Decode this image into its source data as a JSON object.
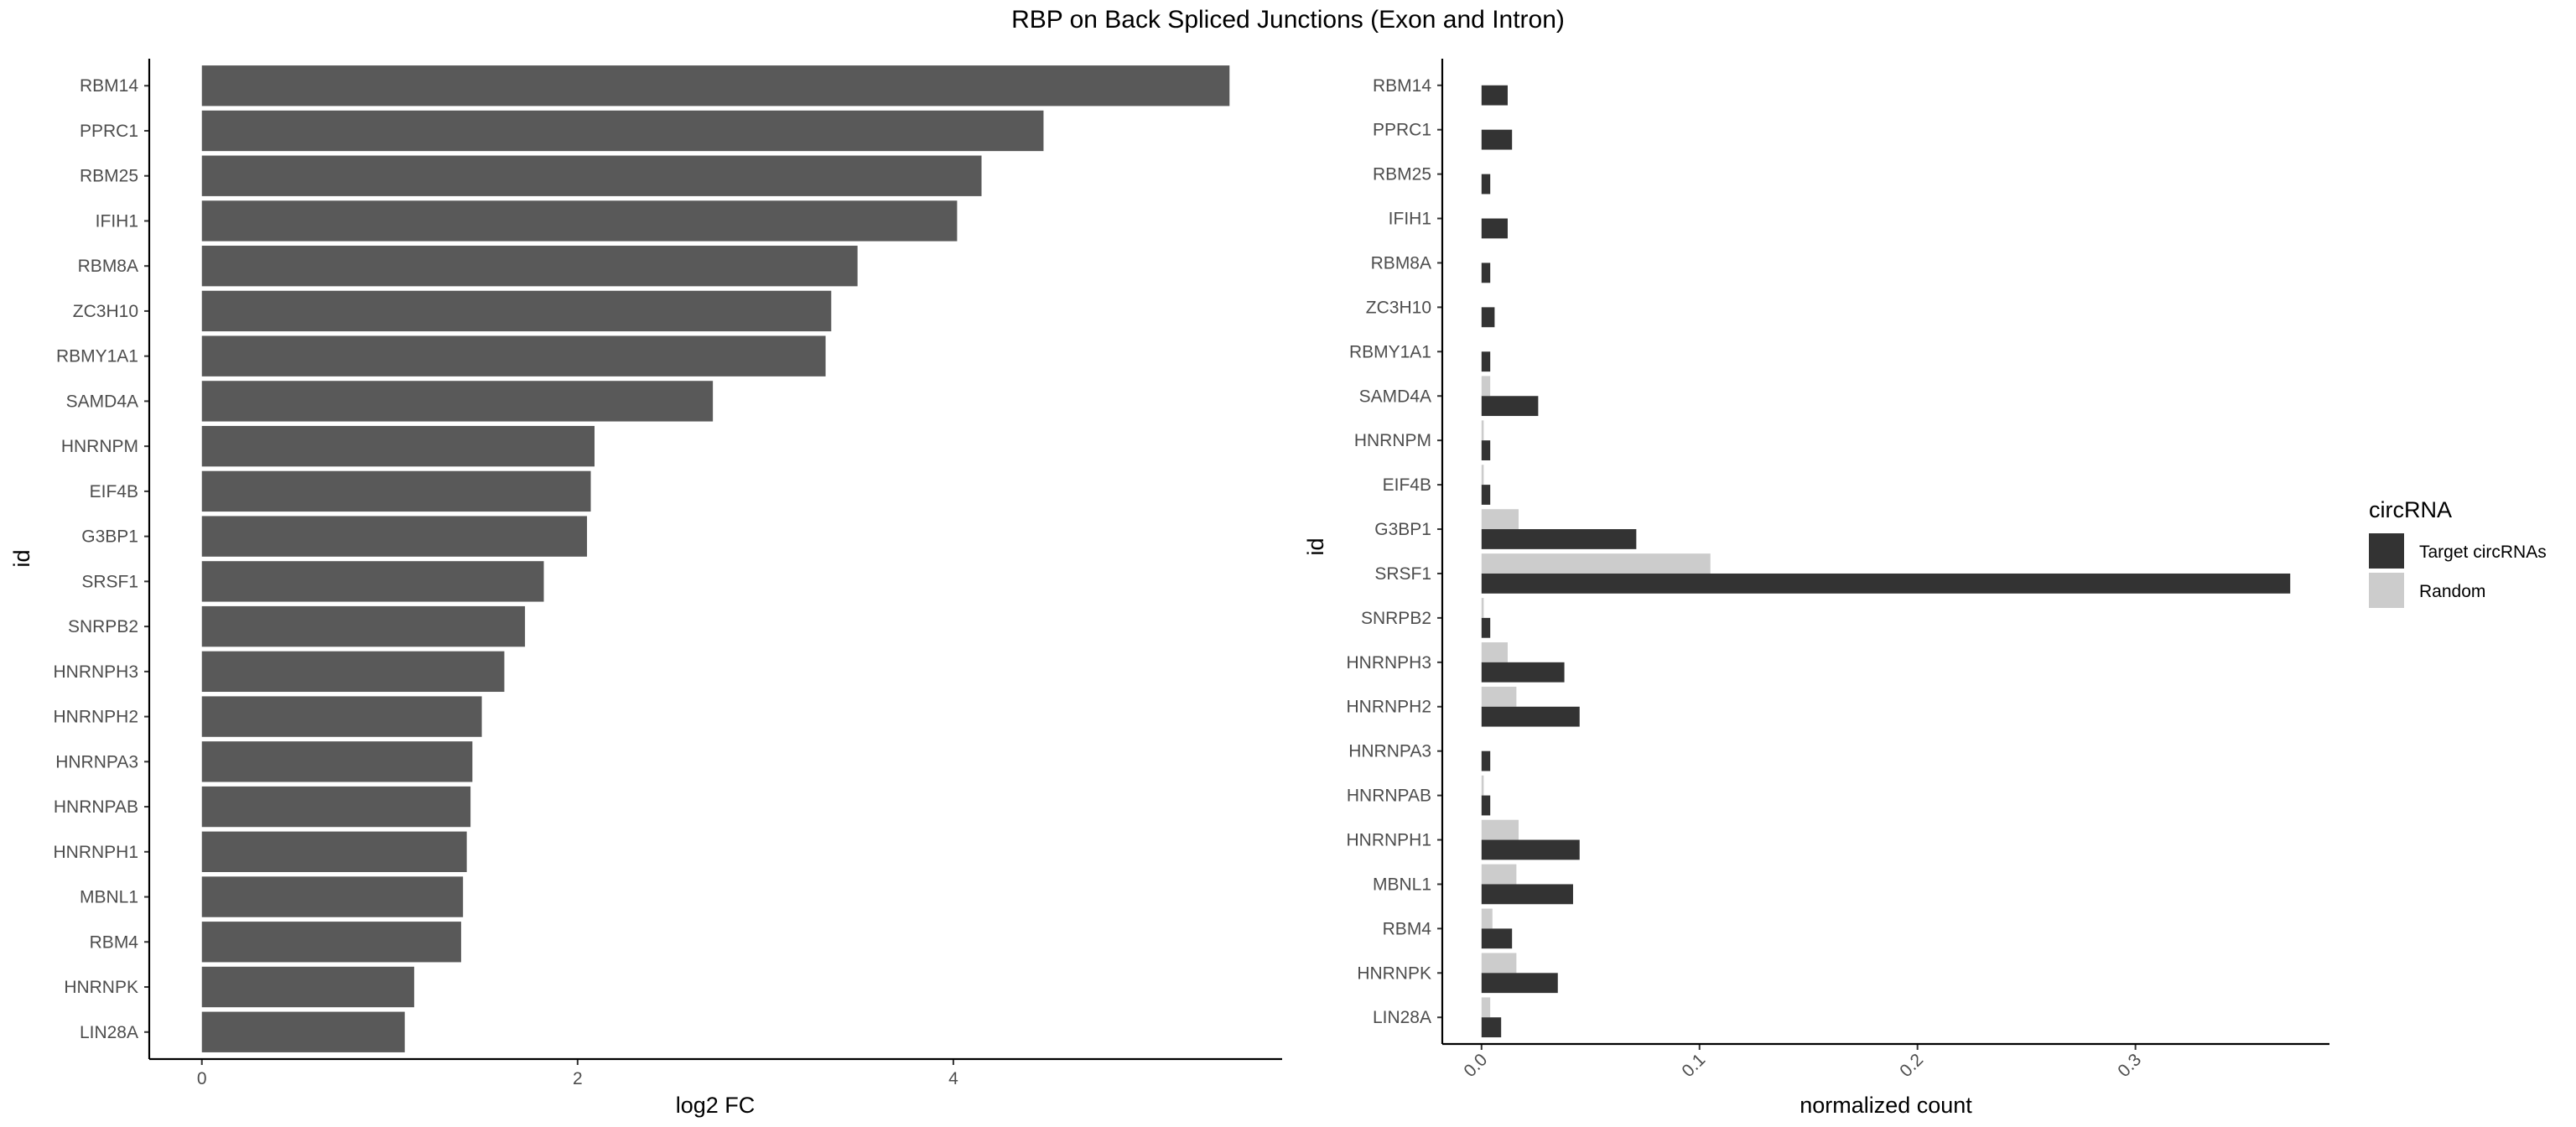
{
  "title": "RBP on Back Spliced Junctions (Exon and Intron)",
  "chart_data": [
    {
      "type": "bar",
      "orientation": "horizontal",
      "ylabel": "id",
      "xlabel": "log2 FC",
      "categories": [
        "RBM14",
        "PPRC1",
        "RBM25",
        "IFIH1",
        "RBM8A",
        "ZC3H10",
        "RBMY1A1",
        "SAMD4A",
        "HNRNPM",
        "EIF4B",
        "G3BP1",
        "SRSF1",
        "SNRPB2",
        "HNRNPH3",
        "HNRNPH2",
        "HNRNPA3",
        "HNRNPAB",
        "HNRNPH1",
        "MBNL1",
        "RBM4",
        "HNRNPK",
        "LIN28A"
      ],
      "values": [
        5.47,
        4.48,
        4.15,
        4.02,
        3.49,
        3.35,
        3.32,
        2.72,
        2.09,
        2.07,
        2.05,
        1.82,
        1.72,
        1.61,
        1.49,
        1.44,
        1.43,
        1.41,
        1.39,
        1.38,
        1.13,
        1.08
      ],
      "xlim": [
        -0.28,
        5.75
      ],
      "xticks": [
        "0",
        "2",
        "4"
      ],
      "grid": false,
      "color": "#595959"
    },
    {
      "type": "bar",
      "orientation": "horizontal",
      "grouped": true,
      "ylabel": "id",
      "xlabel": "normalized count",
      "categories": [
        "RBM14",
        "PPRC1",
        "RBM25",
        "IFIH1",
        "RBM8A",
        "ZC3H10",
        "RBMY1A1",
        "SAMD4A",
        "HNRNPM",
        "EIF4B",
        "G3BP1",
        "SRSF1",
        "SNRPB2",
        "HNRNPH3",
        "HNRNPH2",
        "HNRNPA3",
        "HNRNPAB",
        "HNRNPH1",
        "MBNL1",
        "RBM4",
        "HNRNPK",
        "LIN28A"
      ],
      "series": [
        {
          "name": "Target circRNAs",
          "color": "#333333",
          "values": [
            0.012,
            0.014,
            0.004,
            0.012,
            0.004,
            0.006,
            0.004,
            0.026,
            0.004,
            0.004,
            0.071,
            0.371,
            0.004,
            0.038,
            0.045,
            0.004,
            0.004,
            0.045,
            0.042,
            0.014,
            0.035,
            0.009
          ]
        },
        {
          "name": "Random",
          "color": "#cccccc",
          "values": [
            0.0,
            0.0,
            0.0,
            0.0,
            0.0,
            0.0,
            0.0,
            0.004,
            0.001,
            0.001,
            0.017,
            0.105,
            0.001,
            0.012,
            0.016,
            0.0,
            0.001,
            0.017,
            0.016,
            0.005,
            0.016,
            0.004
          ]
        }
      ],
      "xlim": [
        -0.018,
        0.389
      ],
      "xticks": [
        "0.0",
        "0.1",
        "0.2",
        "0.3"
      ],
      "grid": false,
      "legend": {
        "title": "circRNA",
        "placement": "right"
      }
    }
  ]
}
